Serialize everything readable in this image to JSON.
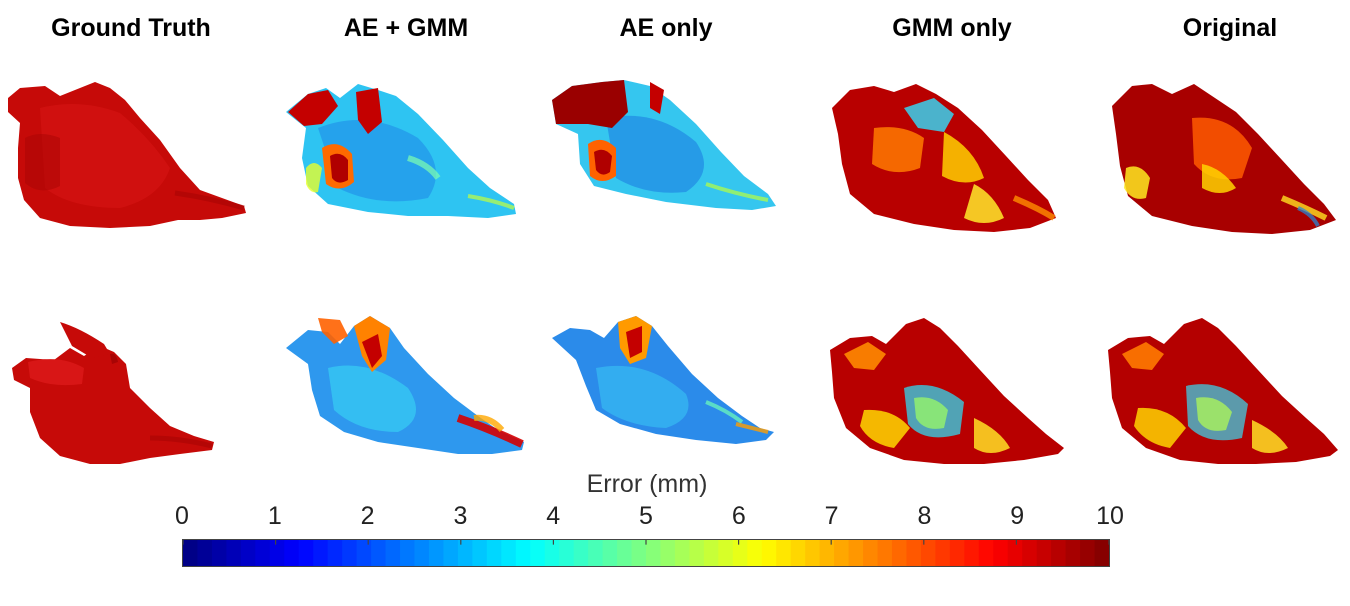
{
  "columns": [
    {
      "title": "Ground Truth"
    },
    {
      "title": "AE + GMM"
    },
    {
      "title": "AE only"
    },
    {
      "title": "GMM only"
    },
    {
      "title": "Original"
    }
  ],
  "colorbar": {
    "label": "Error (mm)",
    "min": 0,
    "max": 10,
    "ticks": [
      "0",
      "1",
      "2",
      "3",
      "4",
      "5",
      "6",
      "7",
      "8",
      "9",
      "10"
    ],
    "colormap": "jet"
  },
  "panels": [
    {
      "row": 1,
      "column": "Ground Truth",
      "kind": "solid-mesh",
      "color": "#c40000"
    },
    {
      "row": 1,
      "column": "AE + GMM",
      "kind": "error-map",
      "base_error": 3.5
    },
    {
      "row": 1,
      "column": "AE only",
      "kind": "error-map",
      "base_error": 3.0
    },
    {
      "row": 1,
      "column": "GMM only",
      "kind": "error-map",
      "base_error": 9.0
    },
    {
      "row": 1,
      "column": "Original",
      "kind": "error-map",
      "base_error": 9.5
    },
    {
      "row": 2,
      "column": "Ground Truth",
      "kind": "solid-mesh",
      "color": "#c40000"
    },
    {
      "row": 2,
      "column": "AE + GMM",
      "kind": "error-map",
      "base_error": 2.0
    },
    {
      "row": 2,
      "column": "AE only",
      "kind": "error-map",
      "base_error": 1.8
    },
    {
      "row": 2,
      "column": "GMM only",
      "kind": "error-map",
      "base_error": 8.5
    },
    {
      "row": 2,
      "column": "Original",
      "kind": "error-map",
      "base_error": 8.5
    }
  ]
}
